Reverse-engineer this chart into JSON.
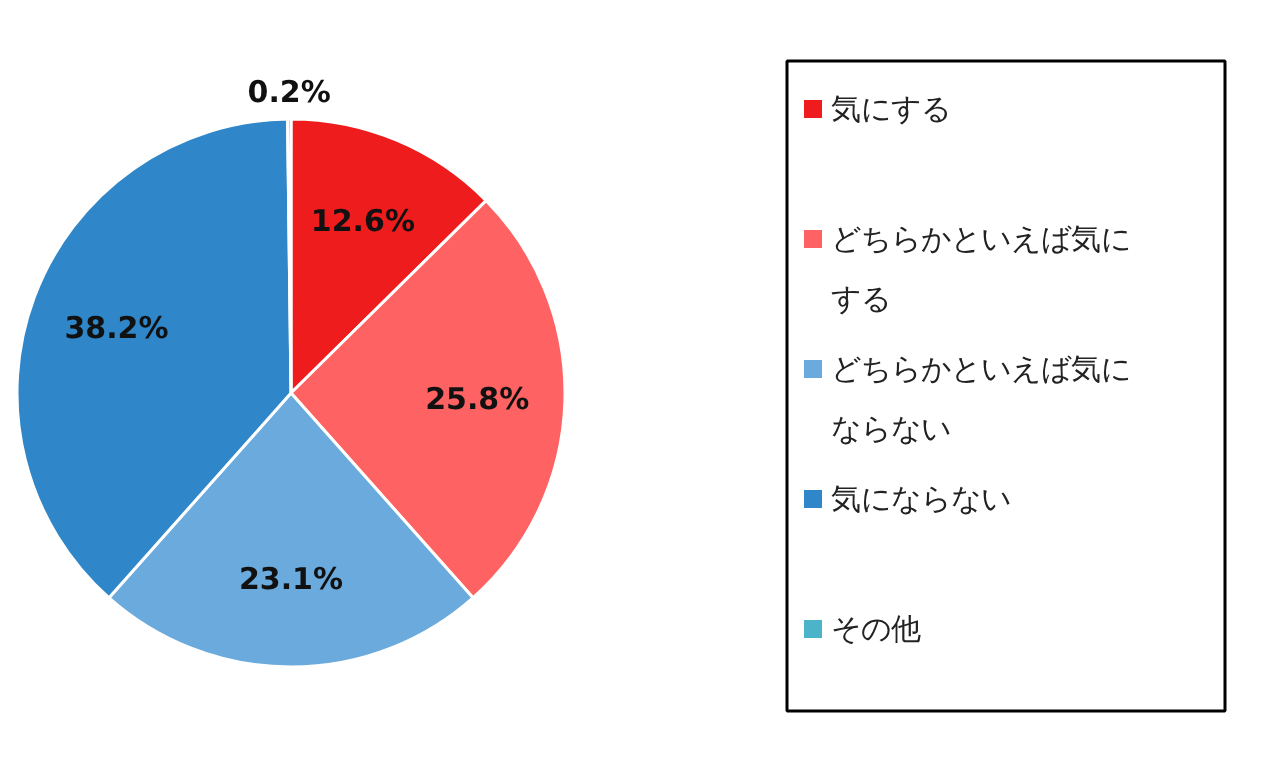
{
  "chart_data": {
    "type": "pie",
    "categories": [
      "気にする",
      "どちらかといえば気にする",
      "どちらかといえば気にならない",
      "気にならない",
      "その他"
    ],
    "values": [
      12.6,
      25.8,
      23.1,
      38.2,
      0.2
    ],
    "value_labels": [
      "12.6%",
      "25.8%",
      "23.1%",
      "38.2%",
      "0.2%"
    ],
    "colors": [
      "#ee1c1c",
      "#ff6262",
      "#6aaadc",
      "#2f86c8",
      "#4bb4c8"
    ],
    "legend": "right"
  }
}
